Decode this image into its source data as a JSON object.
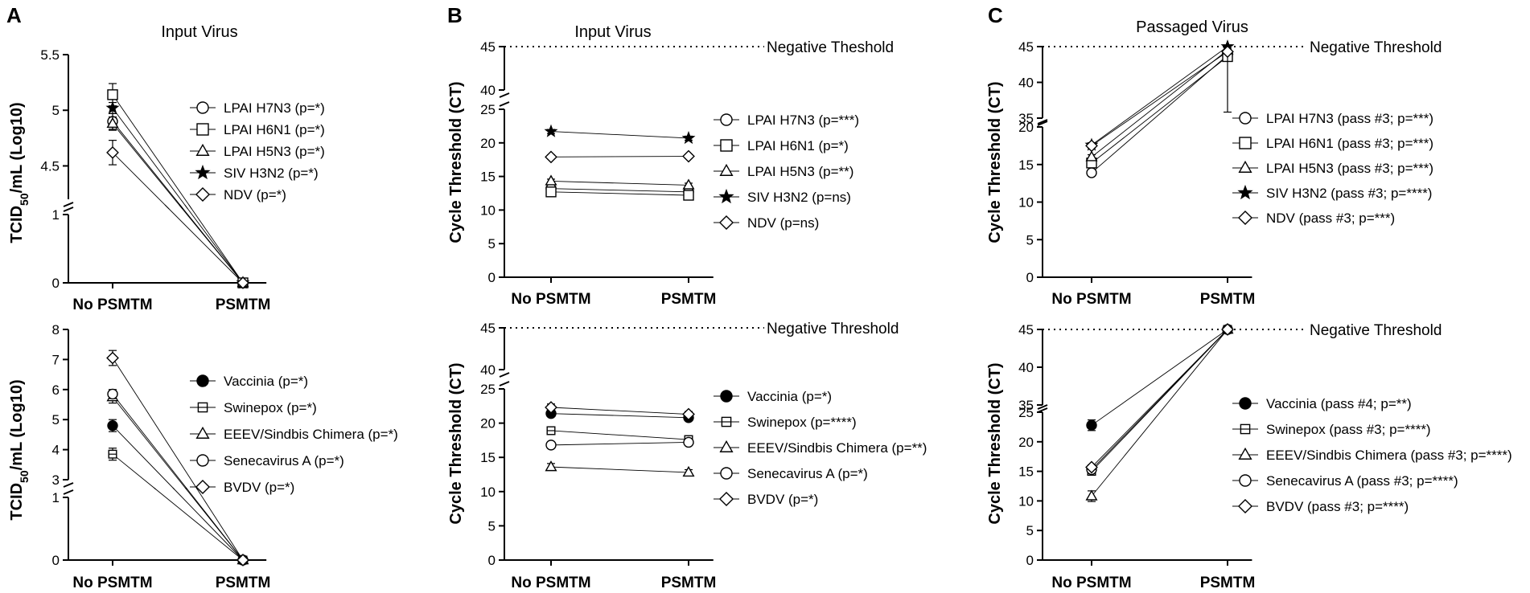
{
  "panel_letters": [
    "A",
    "B",
    "C"
  ],
  "threshold_labels": {
    "B_top": "Negative Theshold",
    "B_bottom": "Negative Threshold",
    "C_top": "Negative Threshold",
    "C_bottom": "Negative Threshold"
  },
  "chart_data": [
    {
      "id": "A_top",
      "panel": "A",
      "type": "line",
      "title": "Input Virus",
      "ylabel": "TCID50/mL  (Log10)",
      "categories": [
        "No PSMTM",
        "PSMTM"
      ],
      "y_axis": {
        "broken": true,
        "lower_range": [
          0,
          1
        ],
        "upper_range": [
          4.2,
          5.5
        ],
        "lower_ticks": [
          "0",
          "1"
        ],
        "upper_ticks": [
          "4.5",
          "5",
          "5.5"
        ]
      },
      "series": [
        {
          "name": "LPAI H7N3 (p=*)",
          "marker": "circle",
          "values": [
            4.9,
            0
          ],
          "err": [
            0.07,
            0
          ]
        },
        {
          "name": "LPAI H6N1 (p=*)",
          "marker": "square",
          "values": [
            5.14,
            0
          ],
          "err": [
            0.1,
            0
          ]
        },
        {
          "name": "LPAI H5N3 (p=*)",
          "marker": "triangle",
          "values": [
            4.88,
            0
          ],
          "err": [
            0.06,
            0
          ]
        },
        {
          "name": "SIV H3N2 (p=*)",
          "marker": "star",
          "values": [
            5.02,
            0
          ],
          "err": [
            0.05,
            0
          ]
        },
        {
          "name": "NDV (p=*)",
          "marker": "diamond",
          "values": [
            4.62,
            0
          ],
          "err": [
            0.11,
            0
          ]
        }
      ]
    },
    {
      "id": "A_bottom",
      "panel": "A",
      "type": "line",
      "ylabel": "TCID50/mL  (Log10)",
      "categories": [
        "No PSMTM",
        "PSMTM"
      ],
      "y_axis": {
        "broken": true,
        "lower_range": [
          0,
          1
        ],
        "upper_range": [
          3,
          8
        ],
        "lower_ticks": [
          "0",
          "1"
        ],
        "upper_ticks": [
          "3",
          "4",
          "5",
          "6",
          "7",
          "8"
        ]
      },
      "series": [
        {
          "name": "Vaccinia (p=*)",
          "marker": "circle-filled",
          "values": [
            4.8,
            0
          ],
          "err": [
            0.2,
            0
          ]
        },
        {
          "name": "Swinepox (p=*)",
          "marker": "square-line",
          "values": [
            3.85,
            0
          ],
          "err": [
            0.2,
            0
          ]
        },
        {
          "name": "EEEV/Sindbis Chimera (p=*)",
          "marker": "triangle",
          "values": [
            5.75,
            0
          ],
          "err": [
            0.2,
            0
          ]
        },
        {
          "name": "Senecavirus A (p=*)",
          "marker": "circle",
          "values": [
            5.85,
            0
          ],
          "err": [
            0.15,
            0
          ]
        },
        {
          "name": "BVDV (p=*)",
          "marker": "diamond",
          "values": [
            7.05,
            0
          ],
          "err": [
            0.25,
            0
          ]
        }
      ]
    },
    {
      "id": "B_top",
      "panel": "B",
      "type": "line",
      "title": "Input Virus",
      "ylabel": "Cycle Threshold (CT)",
      "categories": [
        "No PSMTM",
        "PSMTM"
      ],
      "y_axis": {
        "broken": true,
        "lower_range": [
          0,
          25
        ],
        "upper_range": [
          40,
          45
        ],
        "lower_ticks": [
          "0",
          "5",
          "10",
          "15",
          "20",
          "25"
        ],
        "upper_ticks": [
          "40",
          "45"
        ]
      },
      "threshold": 45,
      "series": [
        {
          "name": "LPAI H7N3 (p=***)",
          "marker": "circle",
          "values": [
            13.2,
            12.7
          ],
          "err": [
            0.3,
            0.3
          ]
        },
        {
          "name": "LPAI H6N1 (p=*)",
          "marker": "square",
          "values": [
            12.7,
            12.2
          ],
          "err": [
            0.3,
            0.3
          ]
        },
        {
          "name": "LPAI H5N3 (p=**)",
          "marker": "triangle",
          "values": [
            14.3,
            13.7
          ],
          "err": [
            0.3,
            0.3
          ]
        },
        {
          "name": "SIV H3N2 (p=ns)",
          "marker": "star",
          "values": [
            21.7,
            20.7
          ],
          "err": [
            0.3,
            0.3
          ]
        },
        {
          "name": "NDV (p=ns)",
          "marker": "diamond",
          "values": [
            17.9,
            18.0
          ],
          "err": [
            0.3,
            0.3
          ]
        }
      ]
    },
    {
      "id": "B_bottom",
      "panel": "B",
      "type": "line",
      "ylabel": "Cycle Threshold (CT)",
      "categories": [
        "No PSMTM",
        "PSMTM"
      ],
      "y_axis": {
        "broken": true,
        "lower_range": [
          0,
          25
        ],
        "upper_range": [
          40,
          45
        ],
        "lower_ticks": [
          "0",
          "5",
          "10",
          "15",
          "20",
          "25"
        ],
        "upper_ticks": [
          "40",
          "45"
        ]
      },
      "threshold": 45,
      "series": [
        {
          "name": "Vaccinia (p=*)",
          "marker": "circle-filled",
          "values": [
            21.4,
            20.8
          ],
          "err": [
            0.4,
            0.4
          ]
        },
        {
          "name": "Swinepox (p=****)",
          "marker": "square-line",
          "values": [
            18.9,
            17.6
          ],
          "err": [
            0.3,
            0.3
          ]
        },
        {
          "name": "EEEV/Sindbis Chimera (p=**)",
          "marker": "triangle",
          "values": [
            13.6,
            12.8
          ],
          "err": [
            0.5,
            0.4
          ]
        },
        {
          "name": "Senecavirus A (p=*)",
          "marker": "circle",
          "values": [
            16.8,
            17.2
          ],
          "err": [
            0.3,
            0.3
          ]
        },
        {
          "name": "BVDV (p=*)",
          "marker": "diamond",
          "values": [
            22.3,
            21.3
          ],
          "err": [
            0.5,
            0.4
          ]
        }
      ]
    },
    {
      "id": "C_top",
      "panel": "C",
      "type": "line",
      "title": "Passaged  Virus",
      "ylabel": "Cycle Threshold (CT)",
      "categories": [
        "No PSMTM",
        "PSMTM"
      ],
      "y_axis": {
        "broken": true,
        "lower_range": [
          0,
          20
        ],
        "upper_range": [
          35,
          45
        ],
        "lower_ticks": [
          "0",
          "5",
          "10",
          "15",
          "20"
        ],
        "upper_ticks": [
          "35",
          "40",
          "45"
        ]
      },
      "threshold": 45,
      "series": [
        {
          "name": "LPAI H7N3 (pass #3; p=***)",
          "marker": "circle",
          "values": [
            13.9,
            43.8
          ],
          "err": [
            0.3,
            0.3
          ]
        },
        {
          "name": "LPAI H6N1 (pass #3; p=***)",
          "marker": "square",
          "values": [
            15.2,
            43.6
          ],
          "err": [
            0.3,
            0.3
          ]
        },
        {
          "name": "LPAI H5N3 (pass #3; p=***)",
          "marker": "triangle",
          "values": [
            16.0,
            44.5
          ],
          "err": [
            0.3,
            0.3
          ]
        },
        {
          "name": "SIV H3N2 (pass #3; p=****)",
          "marker": "star",
          "values": [
            17.6,
            45
          ],
          "err": [
            0.3,
            0.2
          ]
        },
        {
          "name": "NDV (pass #3; p=***)",
          "marker": "diamond",
          "values": [
            17.5,
            44.3
          ],
          "err": [
            0.3,
            0.3
          ]
        }
      ]
    },
    {
      "id": "C_bottom",
      "panel": "C",
      "type": "line",
      "ylabel": "Cycle Threshold (CT)",
      "categories": [
        "No PSMTM",
        "PSMTM"
      ],
      "y_axis": {
        "broken": true,
        "lower_range": [
          0,
          25
        ],
        "upper_range": [
          35,
          45
        ],
        "lower_ticks": [
          "0",
          "5",
          "10",
          "15",
          "20",
          "25"
        ],
        "upper_ticks": [
          "35",
          "40",
          "45"
        ]
      },
      "threshold": 45,
      "series": [
        {
          "name": "Vaccinia (pass #4; p=**)",
          "marker": "circle-filled",
          "values": [
            22.8,
            45
          ],
          "err": [
            0.9,
            0
          ]
        },
        {
          "name": "Swinepox (pass #3; p=****)",
          "marker": "square-line",
          "values": [
            15.0,
            45
          ],
          "err": [
            0.6,
            0
          ]
        },
        {
          "name": "EEEV/Sindbis Chimera (pass #3; p=****)",
          "marker": "triangle",
          "values": [
            10.8,
            45
          ],
          "err": [
            0.9,
            0
          ]
        },
        {
          "name": "Senecavirus A (pass #3; p=****)",
          "marker": "circle",
          "values": [
            15.3,
            45
          ],
          "err": [
            0.4,
            0
          ]
        },
        {
          "name": "BVDV (pass #3; p=****)",
          "marker": "diamond",
          "values": [
            15.7,
            45
          ],
          "err": [
            0.4,
            0
          ]
        }
      ]
    }
  ]
}
